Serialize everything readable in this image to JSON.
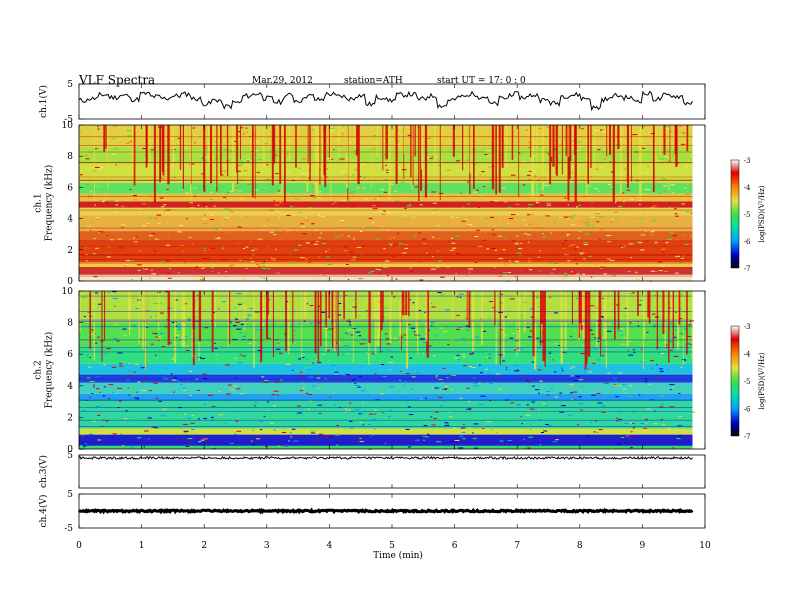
{
  "header": {
    "title": "VLF  Spectra",
    "date": "Mar.29, 2012",
    "station": "station=ATH",
    "start": "start  UT  =    17: 0  : 0"
  },
  "colors": {
    "spectrum": [
      "#000000",
      "#0000c8",
      "#00a0ff",
      "#00e0a0",
      "#40e040",
      "#e0e040",
      "#ff8000",
      "#e00000",
      "#ffffff"
    ]
  },
  "chart_data": [
    {
      "id": "ch1-waveform",
      "type": "line",
      "ylabel": "ch.1(V)",
      "ylim": [
        -5,
        5
      ],
      "yticks": [
        "5",
        "-5"
      ],
      "xlim": [
        0,
        10
      ],
      "x_end": 9.8,
      "samples": [
        0.3,
        0.8,
        1.9,
        1.2,
        1.7,
        0.6,
        2.2,
        1.4,
        0.9,
        1.6,
        2.1,
        0.8,
        -0.6,
        0.4,
        -1.4,
        -0.3,
        1.6,
        2.2,
        0.9,
        -0.2,
        1.8,
        0.3,
        1.6,
        0.5,
        2.1,
        1.5,
        0.8,
        1.7,
        -0.8,
        1.2,
        0.4,
        1.9,
        2.0,
        0.7,
        1.6,
        -1.2,
        0.5,
        1.4,
        2.1,
        1.3,
        -0.7,
        0.9,
        2.1,
        1.2,
        1.8,
        0.4,
        -0.5,
        1.6,
        1.9,
        0.9,
        -1.8,
        0.6,
        1.7,
        1.1,
        0.3,
        2.2,
        0.7,
        1.8,
        1.5,
        -0.4
      ]
    },
    {
      "id": "ch1-spectrogram",
      "type": "heatmap",
      "ylabel": "ch.1\nFrequency  (kHz)",
      "ylim": [
        0,
        10
      ],
      "yticks": [
        "0",
        "2",
        "4",
        "6",
        "8",
        "10"
      ],
      "x_end": 9.8,
      "bands": [
        {
          "f": [
            0,
            0.4
          ],
          "color": "#f4e6c0"
        },
        {
          "f": [
            0.4,
            0.9
          ],
          "color": "#d03030"
        },
        {
          "f": [
            0.9,
            1.2
          ],
          "color": "#f0d040"
        },
        {
          "f": [
            1.2,
            2.6
          ],
          "color": "#e04010"
        },
        {
          "f": [
            2.6,
            3.2
          ],
          "color": "#e06020"
        },
        {
          "f": [
            3.2,
            4.2
          ],
          "color": "#e8b040"
        },
        {
          "f": [
            4.2,
            4.7
          ],
          "color": "#e8d050"
        },
        {
          "f": [
            4.7,
            5.1
          ],
          "color": "#d02020"
        },
        {
          "f": [
            5.1,
            5.6
          ],
          "color": "#e8c040"
        },
        {
          "f": [
            5.6,
            6.3
          ],
          "color": "#60e060"
        },
        {
          "f": [
            6.3,
            7.5
          ],
          "color": "#d0e040"
        },
        {
          "f": [
            7.5,
            8.6
          ],
          "color": "#a8e040"
        },
        {
          "f": [
            8.6,
            10
          ],
          "color": "#e0d040"
        }
      ],
      "colorbar": {
        "label": "log(PSD)(V²/Hz)",
        "range": [
          -7,
          -3
        ],
        "ticks": [
          "-3",
          "-4",
          "-5",
          "-6",
          "-7"
        ]
      }
    },
    {
      "id": "ch2-spectrogram",
      "type": "heatmap",
      "ylabel": "ch.2\nFrequency  (kHz)",
      "ylim": [
        0,
        10
      ],
      "yticks": [
        "0",
        "2",
        "4",
        "6",
        "8",
        "10"
      ],
      "x_end": 9.8,
      "bands": [
        {
          "f": [
            0,
            0.2
          ],
          "color": "#30e060"
        },
        {
          "f": [
            0.2,
            0.9
          ],
          "color": "#2020d0"
        },
        {
          "f": [
            0.9,
            1.3
          ],
          "color": "#d0e040"
        },
        {
          "f": [
            1.3,
            3.1
          ],
          "color": "#30d8a0"
        },
        {
          "f": [
            3.1,
            3.5
          ],
          "color": "#20a0f0"
        },
        {
          "f": [
            3.5,
            4.2
          ],
          "color": "#40d0c0"
        },
        {
          "f": [
            4.2,
            4.7
          ],
          "color": "#2040e0"
        },
        {
          "f": [
            4.7,
            5.4
          ],
          "color": "#20c0e0"
        },
        {
          "f": [
            5.4,
            6.5
          ],
          "color": "#30e080"
        },
        {
          "f": [
            6.5,
            8.0
          ],
          "color": "#50e050"
        },
        {
          "f": [
            8.0,
            10
          ],
          "color": "#b0e040"
        }
      ],
      "colorbar": {
        "label": "log(PSD)(V²/Hz)",
        "range": [
          -7,
          -3
        ],
        "ticks": [
          "-3",
          "-4",
          "-5",
          "-6",
          "-7"
        ]
      }
    },
    {
      "id": "ch3-waveform",
      "type": "line",
      "ylabel": "ch.3(V)",
      "ylim": [
        -5,
        5
      ],
      "yticks": [
        "5"
      ],
      "level": 4.1,
      "x_end": 9.8
    },
    {
      "id": "ch4-waveform",
      "type": "line",
      "ylabel": "ch.4(V)",
      "ylim": [
        -5,
        5
      ],
      "yticks": [
        "5",
        "-5"
      ],
      "level": 0,
      "x_end": 9.8,
      "xlabel": "Time  (min)",
      "xticks": [
        "0",
        "1",
        "2",
        "3",
        "4",
        "5",
        "6",
        "7",
        "8",
        "9",
        "10"
      ],
      "xlim": [
        0,
        10
      ]
    }
  ]
}
